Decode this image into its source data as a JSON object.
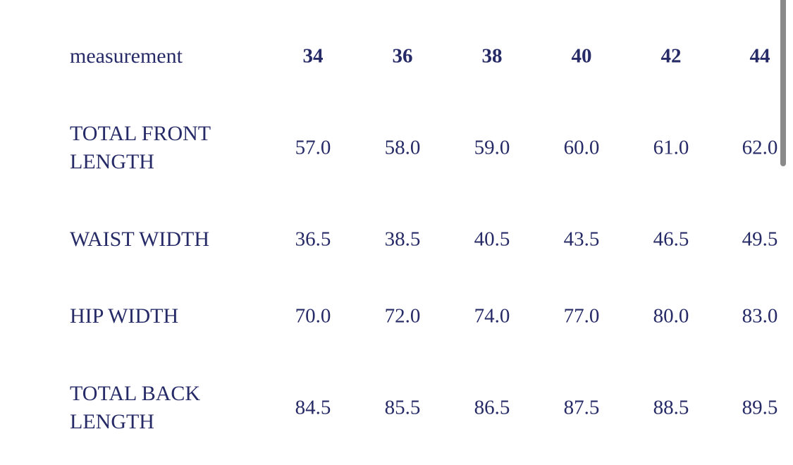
{
  "table": {
    "header_label": "measurement",
    "sizes": [
      "34",
      "36",
      "38",
      "40",
      "42",
      "44"
    ],
    "rows": [
      {
        "label": "TOTAL FRONT LENGTH",
        "values": [
          "57.0",
          "58.0",
          "59.0",
          "60.0",
          "61.0",
          "62.0"
        ]
      },
      {
        "label": "WAIST WIDTH",
        "values": [
          "36.5",
          "38.5",
          "40.5",
          "43.5",
          "46.5",
          "49.5"
        ]
      },
      {
        "label": "HIP WIDTH",
        "values": [
          "70.0",
          "72.0",
          "74.0",
          "77.0",
          "80.0",
          "83.0"
        ]
      },
      {
        "label": "TOTAL BACK LENGTH",
        "values": [
          "84.5",
          "85.5",
          "86.5",
          "87.5",
          "88.5",
          "89.5"
        ]
      }
    ]
  },
  "colors": {
    "text": "#262a66",
    "scrollbar": "#8a8a8a"
  }
}
